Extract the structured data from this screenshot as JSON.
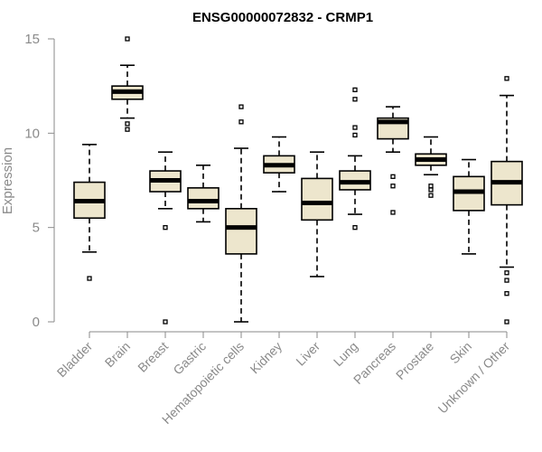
{
  "chart_data": {
    "type": "boxplot",
    "title": "ENSG00000072832 - CRMP1",
    "ylabel": "Expression",
    "xlabel": "",
    "ylim": [
      0,
      15
    ],
    "yticks": [
      0,
      5,
      10,
      15
    ],
    "grid": false,
    "colors": {
      "box_fill": "#ede6cd",
      "box_stroke": "#000000",
      "axis": "#8a8a8a"
    },
    "categories": [
      "Bladder",
      "Brain",
      "Breast",
      "Gastric",
      "Hematopoietic cells",
      "Kidney",
      "Liver",
      "Lung",
      "Pancreas",
      "Prostate",
      "Skin",
      "Unknown / Other"
    ],
    "boxes": [
      {
        "min": 3.7,
        "q1": 5.5,
        "median": 6.4,
        "q3": 7.4,
        "max": 9.4,
        "outliers": [
          2.3
        ]
      },
      {
        "min": 10.8,
        "q1": 11.8,
        "median": 12.2,
        "q3": 12.5,
        "max": 13.6,
        "outliers": [
          15.0,
          10.5,
          10.2
        ]
      },
      {
        "min": 6.0,
        "q1": 6.9,
        "median": 7.5,
        "q3": 8.0,
        "max": 9.0,
        "outliers": [
          5.0,
          0.0
        ]
      },
      {
        "min": 5.3,
        "q1": 6.0,
        "median": 6.4,
        "q3": 7.1,
        "max": 8.3,
        "outliers": []
      },
      {
        "min": 0.0,
        "q1": 3.6,
        "median": 5.0,
        "q3": 6.0,
        "max": 9.2,
        "outliers": [
          11.4,
          10.6
        ]
      },
      {
        "min": 6.9,
        "q1": 7.9,
        "median": 8.3,
        "q3": 8.8,
        "max": 9.8,
        "outliers": []
      },
      {
        "min": 2.4,
        "q1": 5.4,
        "median": 6.3,
        "q3": 7.6,
        "max": 9.0,
        "outliers": []
      },
      {
        "min": 5.7,
        "q1": 7.0,
        "median": 7.4,
        "q3": 8.0,
        "max": 8.8,
        "outliers": [
          12.3,
          11.8,
          10.3,
          9.9,
          5.0
        ]
      },
      {
        "min": 9.0,
        "q1": 9.7,
        "median": 10.6,
        "q3": 10.8,
        "max": 11.4,
        "outliers": [
          7.7,
          7.2,
          5.8
        ]
      },
      {
        "min": 7.8,
        "q1": 8.3,
        "median": 8.6,
        "q3": 8.9,
        "max": 9.8,
        "outliers": [
          7.2,
          7.0,
          6.7
        ]
      },
      {
        "min": 3.6,
        "q1": 5.9,
        "median": 6.9,
        "q3": 7.7,
        "max": 8.6,
        "outliers": []
      },
      {
        "min": 2.9,
        "q1": 6.2,
        "median": 7.4,
        "q3": 8.5,
        "max": 12.0,
        "outliers": [
          12.9,
          2.6,
          2.2,
          1.5,
          0.0
        ]
      }
    ]
  }
}
